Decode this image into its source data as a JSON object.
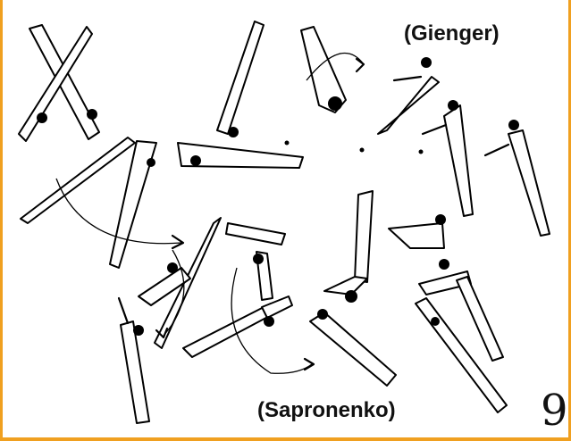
{
  "labels": {
    "gienger": "(Gienger)",
    "sapronenko": "(Sapronenko)"
  },
  "page_number": "9"
}
